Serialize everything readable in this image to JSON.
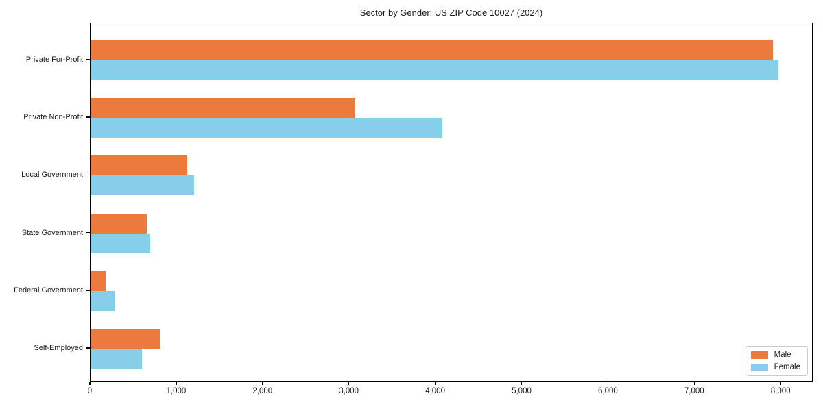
{
  "figure": {
    "title": "Sector by Gender: US ZIP Code 10027 (2024)"
  },
  "chart_data": {
    "type": "bar",
    "orientation": "horizontal",
    "title": "Sector by Gender: US ZIP Code 10027 (2024)",
    "categories": [
      "Private For-Profit",
      "Private Non-Profit",
      "Local Government",
      "State Government",
      "Federal Government",
      "Self-Employed"
    ],
    "series": [
      {
        "name": "Male",
        "color": "#ec7a3c",
        "values": [
          7920,
          3075,
          1125,
          650,
          175,
          815
        ]
      },
      {
        "name": "Female",
        "color": "#87ceeb",
        "values": [
          7980,
          4080,
          1205,
          695,
          285,
          600
        ]
      }
    ],
    "xlabel": "",
    "ylabel": "",
    "xlim": [
      0,
      8372
    ],
    "x_ticks": {
      "values": [
        0,
        1000,
        2000,
        3000,
        4000,
        5000,
        6000,
        7000,
        8000
      ],
      "labels": [
        "0",
        "1,000",
        "2,000",
        "3,000",
        "4,000",
        "5,000",
        "6,000",
        "7,000",
        "8,000"
      ]
    },
    "grid": false,
    "legend": {
      "position": "lower right"
    }
  },
  "colors": {
    "background": "#ffffff",
    "spine": "#000000",
    "text": "#1a1a1a",
    "legend_border": "#cccccc",
    "male": "#ec7a3c",
    "female": "#87ceeb"
  }
}
